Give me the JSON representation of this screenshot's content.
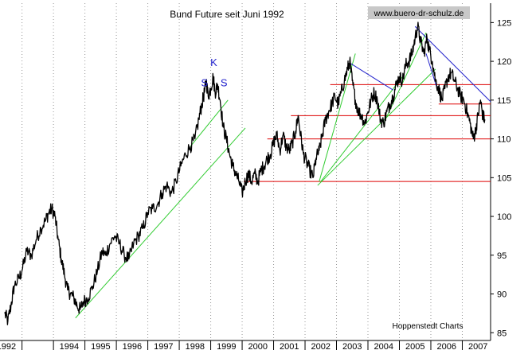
{
  "chart_data": {
    "type": "line",
    "title": "Bund Future seit Juni 1992",
    "watermark": "www.buero-dr-schulz.de",
    "source": "Hoppenstedt Charts",
    "xlabel": "",
    "ylabel": "",
    "x_range": [
      1992.3,
      2007.9
    ],
    "ylim": [
      84,
      127.5
    ],
    "y_ticks": [
      85,
      90,
      95,
      100,
      105,
      110,
      115,
      120,
      125
    ],
    "x_tick_labels": [
      "1992",
      "1994",
      "1995",
      "1996",
      "1997",
      "1998",
      "1999",
      "2000",
      "2001",
      "2002",
      "2003",
      "2004",
      "2005",
      "2006",
      "2007"
    ],
    "x_tick_years": [
      1992.5,
      1994.5,
      1995.5,
      1996.5,
      1997.5,
      1998.5,
      1999.5,
      2000.5,
      2001.5,
      2002.5,
      2003.5,
      2004.5,
      2005.5,
      2006.5,
      2007.5
    ],
    "grid": "vertical dotted lines at year boundaries",
    "colors": {
      "price": "#000000",
      "support": "#dd0000",
      "uptrend": "#33cc33",
      "downtrend": "#2222cc",
      "annotation": "#2222cc",
      "axis": "#000000"
    },
    "series": [
      {
        "values": [
          [
            1992.45,
            87.5
          ],
          [
            1992.55,
            86.5
          ],
          [
            1992.65,
            88.5
          ],
          [
            1992.75,
            91.0
          ],
          [
            1992.9,
            92.0
          ],
          [
            1993.0,
            93.0
          ],
          [
            1993.15,
            95.5
          ],
          [
            1993.3,
            95.0
          ],
          [
            1993.45,
            97.0
          ],
          [
            1993.6,
            98.5
          ],
          [
            1993.75,
            99.5
          ],
          [
            1993.85,
            100.5
          ],
          [
            1993.95,
            101.0
          ],
          [
            1994.05,
            100.0
          ],
          [
            1994.15,
            97.0
          ],
          [
            1994.25,
            94.5
          ],
          [
            1994.35,
            92.5
          ],
          [
            1994.45,
            90.5
          ],
          [
            1994.55,
            90.0
          ],
          [
            1994.65,
            89.5
          ],
          [
            1994.75,
            88.5
          ],
          [
            1994.85,
            88.0
          ],
          [
            1994.95,
            89.0
          ],
          [
            1995.1,
            89.5
          ],
          [
            1995.25,
            91.0
          ],
          [
            1995.4,
            93.0
          ],
          [
            1995.55,
            95.5
          ],
          [
            1995.65,
            95.0
          ],
          [
            1995.8,
            96.5
          ],
          [
            1995.95,
            97.5
          ],
          [
            1996.1,
            96.5
          ],
          [
            1996.25,
            95.0
          ],
          [
            1996.4,
            94.5
          ],
          [
            1996.55,
            96.5
          ],
          [
            1996.7,
            97.5
          ],
          [
            1996.85,
            98.5
          ],
          [
            1997.0,
            100.5
          ],
          [
            1997.15,
            101.0
          ],
          [
            1997.3,
            101.5
          ],
          [
            1997.45,
            103.0
          ],
          [
            1997.6,
            104.0
          ],
          [
            1997.75,
            103.0
          ],
          [
            1997.9,
            104.5
          ],
          [
            1998.05,
            106.5
          ],
          [
            1998.2,
            108.0
          ],
          [
            1998.35,
            109.0
          ],
          [
            1998.5,
            110.0
          ],
          [
            1998.62,
            112.5
          ],
          [
            1998.72,
            114.5
          ],
          [
            1998.8,
            116.0
          ],
          [
            1998.86,
            117.5
          ],
          [
            1998.92,
            115.5
          ],
          [
            1999.0,
            116.5
          ],
          [
            1999.08,
            118.0
          ],
          [
            1999.14,
            116.0
          ],
          [
            1999.22,
            117.0
          ],
          [
            1999.3,
            115.0
          ],
          [
            1999.4,
            111.5
          ],
          [
            1999.5,
            110.0
          ],
          [
            1999.6,
            108.0
          ],
          [
            1999.7,
            106.5
          ],
          [
            1999.8,
            105.5
          ],
          [
            1999.9,
            104.5
          ],
          [
            2000.0,
            103.0
          ],
          [
            2000.1,
            104.5
          ],
          [
            2000.2,
            105.5
          ],
          [
            2000.3,
            104.5
          ],
          [
            2000.4,
            105.5
          ],
          [
            2000.5,
            104.5
          ],
          [
            2000.6,
            106.0
          ],
          [
            2000.7,
            106.5
          ],
          [
            2000.8,
            107.5
          ],
          [
            2000.9,
            108.0
          ],
          [
            2001.0,
            109.5
          ],
          [
            2001.1,
            110.5
          ],
          [
            2001.2,
            108.5
          ],
          [
            2001.3,
            110.5
          ],
          [
            2001.4,
            109.0
          ],
          [
            2001.5,
            108.5
          ],
          [
            2001.6,
            109.5
          ],
          [
            2001.7,
            111.0
          ],
          [
            2001.78,
            113.0
          ],
          [
            2001.86,
            110.5
          ],
          [
            2001.95,
            108.0
          ],
          [
            2002.05,
            107.0
          ],
          [
            2002.15,
            106.0
          ],
          [
            2002.25,
            105.0
          ],
          [
            2002.35,
            107.5
          ],
          [
            2002.45,
            108.5
          ],
          [
            2002.55,
            110.5
          ],
          [
            2002.65,
            112.5
          ],
          [
            2002.75,
            113.5
          ],
          [
            2002.85,
            114.5
          ],
          [
            2002.95,
            115.5
          ],
          [
            2003.05,
            114.5
          ],
          [
            2003.15,
            116.0
          ],
          [
            2003.25,
            117.5
          ],
          [
            2003.35,
            119.0
          ],
          [
            2003.42,
            120.0
          ],
          [
            2003.5,
            117.5
          ],
          [
            2003.6,
            115.0
          ],
          [
            2003.7,
            113.5
          ],
          [
            2003.8,
            113.0
          ],
          [
            2003.9,
            112.0
          ],
          [
            2004.0,
            113.5
          ],
          [
            2004.1,
            115.0
          ],
          [
            2004.2,
            116.0
          ],
          [
            2004.3,
            115.0
          ],
          [
            2004.4,
            112.5
          ],
          [
            2004.5,
            112.0
          ],
          [
            2004.6,
            113.5
          ],
          [
            2004.7,
            114.5
          ],
          [
            2004.8,
            115.5
          ],
          [
            2004.9,
            117.0
          ],
          [
            2005.0,
            118.0
          ],
          [
            2005.1,
            117.5
          ],
          [
            2005.2,
            119.5
          ],
          [
            2005.3,
            120.0
          ],
          [
            2005.4,
            121.0
          ],
          [
            2005.5,
            123.0
          ],
          [
            2005.58,
            124.5
          ],
          [
            2005.68,
            122.5
          ],
          [
            2005.78,
            121.0
          ],
          [
            2005.88,
            123.0
          ],
          [
            2005.95,
            121.5
          ],
          [
            2006.05,
            120.0
          ],
          [
            2006.15,
            117.5
          ],
          [
            2006.25,
            116.5
          ],
          [
            2006.35,
            115.0
          ],
          [
            2006.45,
            116.5
          ],
          [
            2006.55,
            118.0
          ],
          [
            2006.65,
            118.5
          ],
          [
            2006.75,
            117.5
          ],
          [
            2006.85,
            116.5
          ],
          [
            2006.95,
            115.5
          ],
          [
            2007.05,
            115.0
          ],
          [
            2007.15,
            113.5
          ],
          [
            2007.25,
            112.0
          ],
          [
            2007.35,
            110.0
          ],
          [
            2007.42,
            111.0
          ],
          [
            2007.5,
            113.0
          ],
          [
            2007.58,
            115.0
          ],
          [
            2007.65,
            113.0
          ],
          [
            2007.72,
            112.5
          ]
        ]
      }
    ],
    "support_lines": [
      {
        "y": 117.0,
        "x_from": 2002.8,
        "x_to": 2007.95
      },
      {
        "y": 114.5,
        "x_from": 2006.25,
        "x_to": 2007.95
      },
      {
        "y": 113.0,
        "x_from": 2001.55,
        "x_to": 2007.95
      },
      {
        "y": 110.0,
        "x_from": 2000.8,
        "x_to": 2007.95
      },
      {
        "y": 104.5,
        "x_from": 2000.05,
        "x_to": 2007.95
      }
    ],
    "uptrend_lines": [
      {
        "from": [
          1994.7,
          86.9
        ],
        "to": [
          2000.1,
          111.4
        ]
      },
      {
        "from": [
          1998.35,
          109.0
        ],
        "to": [
          1999.55,
          115.0
        ]
      },
      {
        "from": [
          2002.45,
          104.5
        ],
        "to": [
          2003.6,
          121.0
        ]
      },
      {
        "from": [
          2002.5,
          104.5
        ],
        "to": [
          2005.1,
          118.0
        ]
      },
      {
        "from": [
          2002.4,
          104.0
        ],
        "to": [
          2006.15,
          119.0
        ]
      },
      {
        "from": [
          2004.5,
          112.0
        ],
        "to": [
          2005.85,
          123.7
        ]
      }
    ],
    "downtrend_lines": [
      {
        "from": [
          2003.42,
          119.8
        ],
        "to": [
          2004.8,
          116.3
        ]
      },
      {
        "from": [
          2005.5,
          124.5
        ],
        "to": [
          2007.9,
          114.8
        ]
      },
      {
        "from": [
          2005.85,
          121.0
        ],
        "to": [
          2006.2,
          116.5
        ]
      }
    ],
    "annotations": [
      {
        "text": "S",
        "x": 1998.8,
        "y": 116.8
      },
      {
        "text": "K",
        "x": 1999.1,
        "y": 119.4
      },
      {
        "text": "S",
        "x": 1999.42,
        "y": 116.8
      }
    ]
  }
}
